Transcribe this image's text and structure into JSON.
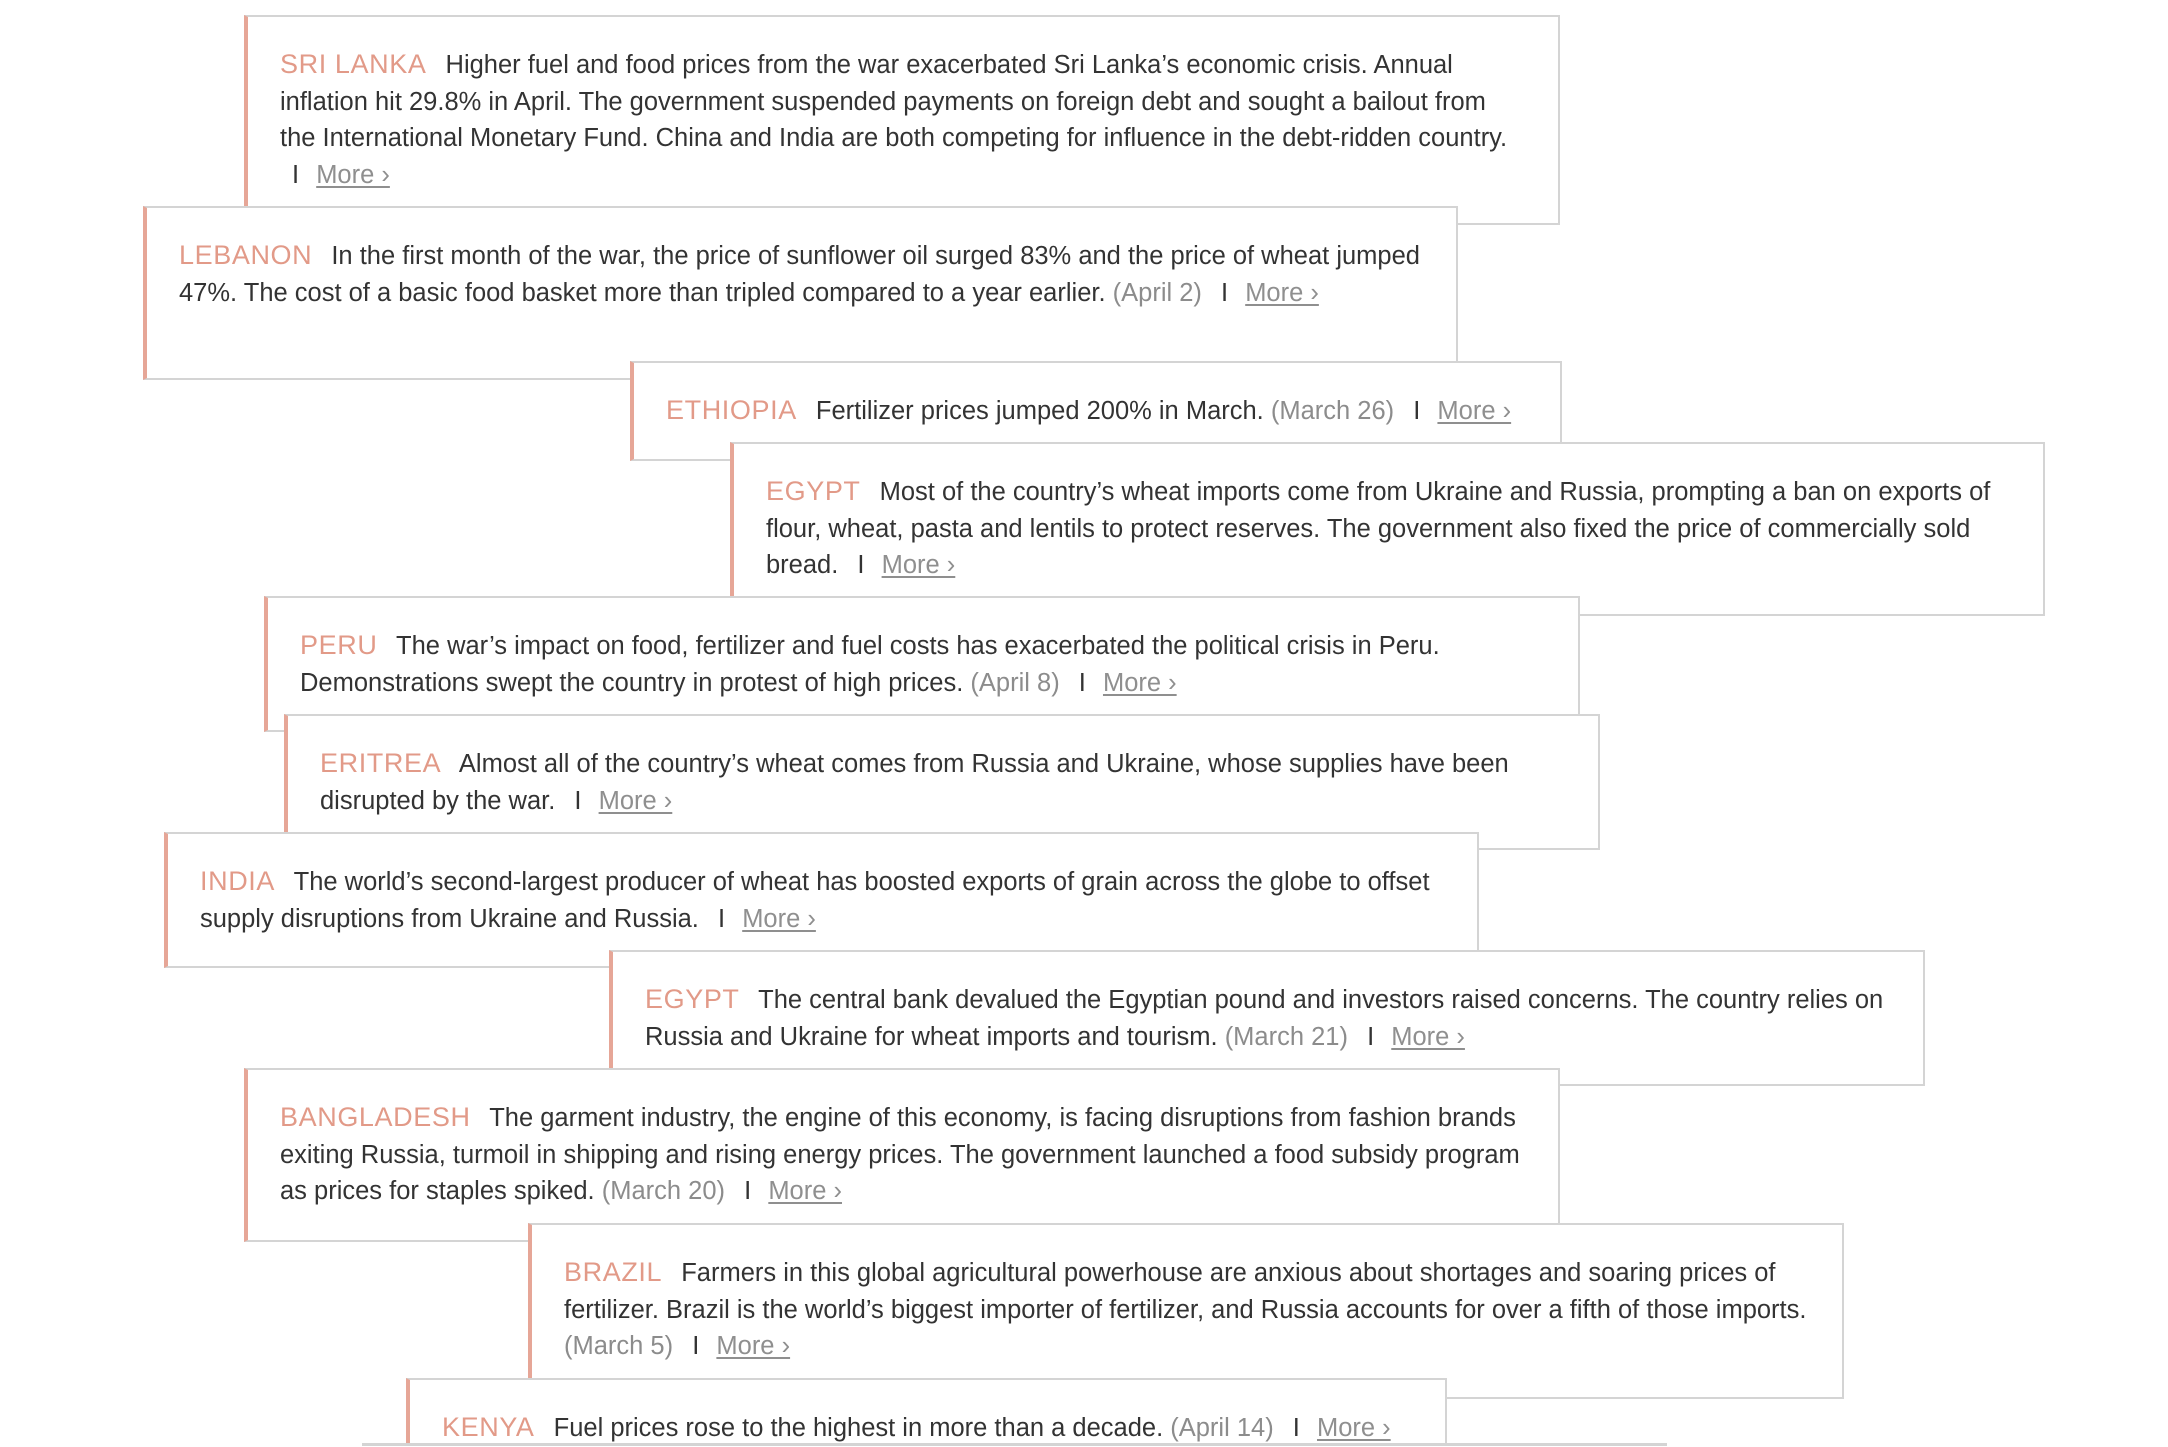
{
  "separator": "I",
  "more_label": "More ›",
  "cards": [
    {
      "country": "SRI LANKA",
      "text": "Higher fuel and food prices from the war exacerbated Sri Lanka’s economic crisis. Annual inflation hit 29.8% in April. The government suspended payments on foreign debt and sought a bailout from the International Monetary Fund. China and India are both competing for influence in the debt-ridden country.",
      "date": ""
    },
    {
      "country": "LEBANON",
      "text": "In the first month of the war, the price of sunflower oil surged 83% and the price of wheat jumped 47%. The cost of a basic food basket more than tripled compared to a year earlier.",
      "date": "(April 2)"
    },
    {
      "country": "ETHIOPIA",
      "text": "Fertilizer prices jumped 200% in March.",
      "date": "(March 26)"
    },
    {
      "country": "EGYPT",
      "text": "Most of the country’s wheat imports come from Ukraine and Russia, prompting a ban on exports of flour, wheat, pasta and lentils to protect reserves. The government also fixed the price of commercially sold bread.",
      "date": ""
    },
    {
      "country": "PERU",
      "text": "The war’s impact on food, fertilizer and fuel costs has exacerbated the political crisis in Peru. Demonstrations swept the country in protest of high prices.",
      "date": "(April 8)"
    },
    {
      "country": "ERITREA",
      "text": "Almost all of the country’s wheat comes from Russia and Ukraine, whose supplies have been disrupted by the war.",
      "date": ""
    },
    {
      "country": "INDIA",
      "text": "The world’s second-largest producer of wheat has boosted exports of grain across the globe to offset supply disruptions from Ukraine and Russia.",
      "date": ""
    },
    {
      "country": "EGYPT",
      "text": "The central bank devalued the Egyptian pound and investors raised concerns. The country relies on Russia and Ukraine for wheat imports and tourism.",
      "date": "(March 21)"
    },
    {
      "country": "BANGLADESH",
      "text": "The garment industry, the engine of this economy, is facing disruptions from fashion brands exiting Russia, turmoil in shipping and rising energy prices. The government launched a food subsidy program as prices for staples spiked.",
      "date": "(March 20)"
    },
    {
      "country": "BRAZIL",
      "text": "Farmers in this global agricultural powerhouse are anxious about shortages and soaring prices of fertilizer. Brazil is the world’s biggest importer of fertilizer, and Russia accounts for over a fifth of those imports.",
      "date": "(March 5)"
    },
    {
      "country": "KENYA",
      "text": "Fuel prices rose to the highest in more than a decade.",
      "date": "(April 14)"
    }
  ]
}
